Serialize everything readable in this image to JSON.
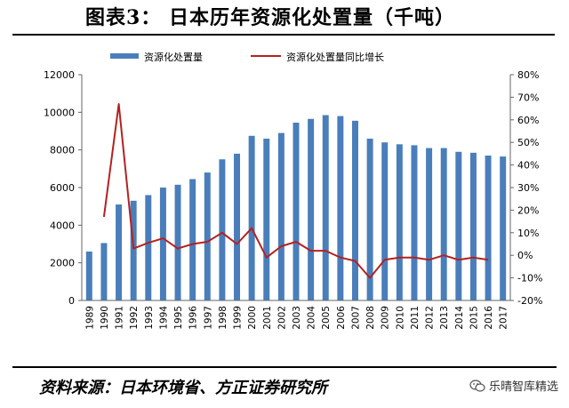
{
  "header": {
    "title": "图表3：  日本历年资源化处置量（千吨）"
  },
  "footer": {
    "source": "资料来源：日本环境省、方正证券研究所"
  },
  "watermark": {
    "text": "乐晴智库精选",
    "icon": "wechat-icon"
  },
  "chart_data": {
    "type": "bar",
    "categories": [
      "1989",
      "1990",
      "1991",
      "1992",
      "1993",
      "1994",
      "1995",
      "1996",
      "1997",
      "1998",
      "1999",
      "2000",
      "2001",
      "2002",
      "2003",
      "2004",
      "2005",
      "2006",
      "2007",
      "2008",
      "2009",
      "2010",
      "2011",
      "2012",
      "2013",
      "2014",
      "2015",
      "2016",
      "2017"
    ],
    "series": [
      {
        "name": "资源化处置量",
        "type": "bar",
        "axis": "left",
        "color": "#4a7ebb",
        "values": [
          2600,
          3050,
          5100,
          5300,
          5600,
          6000,
          6150,
          6450,
          6800,
          7500,
          7800,
          8750,
          8600,
          8900,
          9450,
          9650,
          9850,
          9800,
          9550,
          8600,
          8400,
          8300,
          8250,
          8100,
          8100,
          7900,
          7850,
          7700,
          7650
        ]
      },
      {
        "name": "资源化处置量同比增长",
        "type": "line",
        "axis": "right",
        "color": "#b22222",
        "values": [
          null,
          17,
          67,
          3,
          5.5,
          7.5,
          3,
          5,
          6,
          10,
          5,
          12,
          -1,
          4,
          6,
          2,
          2,
          -1,
          -2.5,
          -10,
          -2,
          -1,
          -1,
          -2,
          0,
          -2,
          -1,
          -2,
          null
        ]
      }
    ],
    "yaxis_left": {
      "ylim": [
        0,
        12000
      ],
      "ticks": [
        "0",
        "2000",
        "4000",
        "6000",
        "8000",
        "10000",
        "12000"
      ]
    },
    "yaxis_right": {
      "ylim": [
        -20,
        80
      ],
      "ticks": [
        "-20%",
        "-10%",
        "0%",
        "10%",
        "20%",
        "30%",
        "40%",
        "50%",
        "60%",
        "70%",
        "80%"
      ]
    },
    "xlabel": "",
    "ylabel": "",
    "legend_position": "top",
    "grid": false
  }
}
